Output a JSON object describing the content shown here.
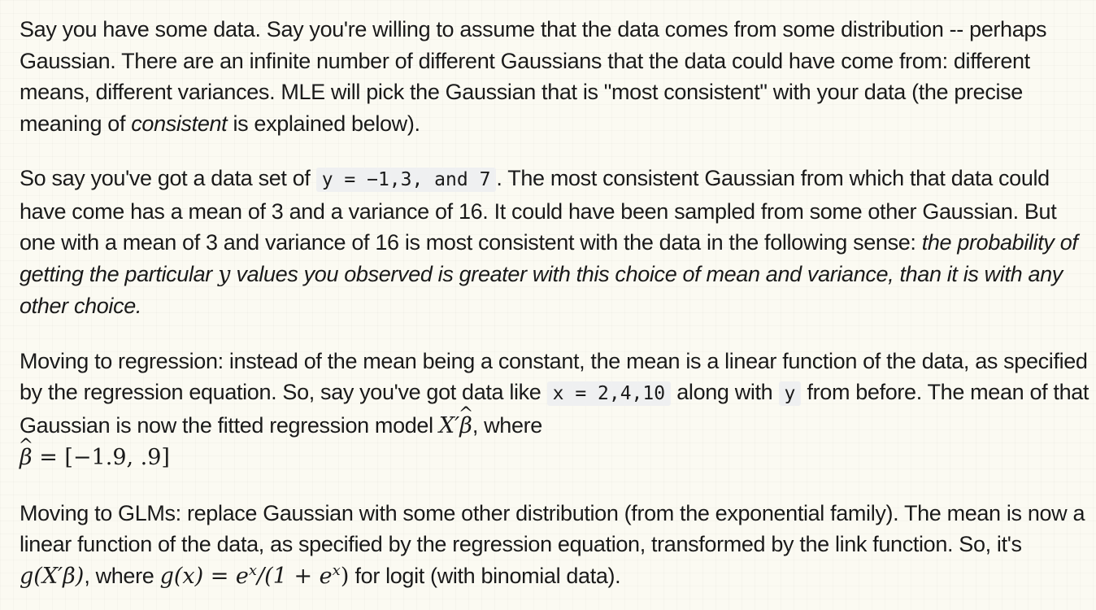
{
  "p1": {
    "t1": "Say you have some data. Say you're willing to assume that the data comes from some distribution -- perhaps Gaussian. There are an infinite number of different Gaussians that the data could have come from: different means, different variances. MLE will pick the Gaussian that is \"most consistent\" with your data (the precise meaning of ",
    "em": "consistent",
    "t2": " is explained below)."
  },
  "p2": {
    "t1": "So say you've got a data set of ",
    "code": "y = −1,3, and 7",
    "t2": ". The most consistent Gaussian from which that data could have come has a mean of 3 and a variance of 16. It could have been sampled from some other Gaussian. But one with a mean of 3 and variance of 16 is most consistent with the data in the following sense: ",
    "em1": "the probability of getting the particular ",
    "mathvar": "y",
    "em2": " values you observed is greater with this choice of mean and variance, than it is with any other choice."
  },
  "p3": {
    "t1": "Moving to regression: instead of the mean being a constant, the mean is a linear function of the data, as specified by the regression equation. So, say you've got data like ",
    "code_x": "x = 2,4,10",
    "t2": " along with ",
    "code_y": "y",
    "t3": " from before. The mean of that Gaussian is now the fitted regression model ",
    "math_model_X": "X′",
    "math_model_beta": "β",
    "t4": ", where",
    "math_beta_sym": "β",
    "math_beta_val": " = [−1.9, .9]"
  },
  "p4": {
    "t1": "Moving to GLMs: replace Gaussian with some other distribution (from the exponential family). The mean is now a linear function of the data, as specified by the regression equation, transformed by the link function. So, it's ",
    "math_g1": "g(X′β)",
    "t2": ", where ",
    "math_g2_lhs": "g(x) = e",
    "math_sup1": "x",
    "math_g2_mid": "/(1 + e",
    "math_sup2": "x",
    "math_g2_end": ")",
    "t3": " for logit (with binomial data)."
  }
}
